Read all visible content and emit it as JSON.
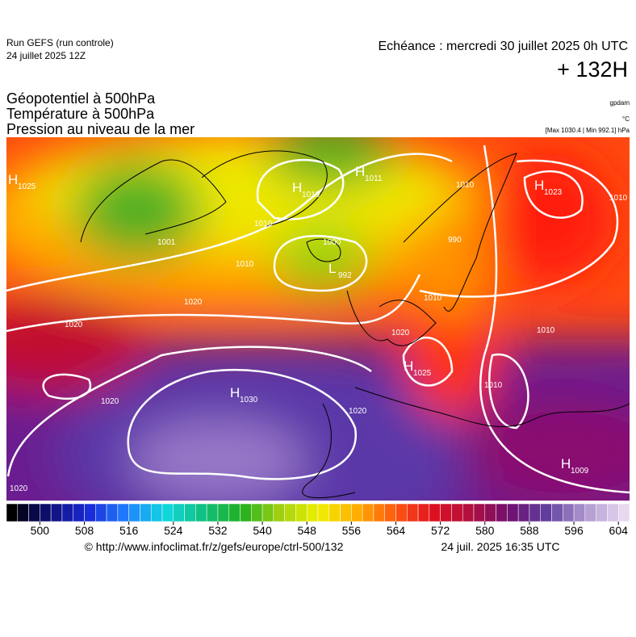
{
  "header": {
    "run": "Run GEFS (run controle)",
    "run_date": "24 juillet 2025 12Z",
    "valid": "Echéance : mercredi 30 juillet 2025 0h UTC",
    "lead": "+ 132H"
  },
  "titles": [
    "Géopotentiel à 500hPa",
    "Température à 500hPa",
    "Pression au niveau de la mer"
  ],
  "units": {
    "geopotential": "gpdam",
    "temperature": "°C",
    "pressure": "[Max 1030.4 | Min 992.1] hPa"
  },
  "centers": [
    {
      "letter": "H",
      "value": "1025"
    },
    {
      "letter": "H",
      "value": "1019"
    },
    {
      "letter": "H",
      "value": "1011"
    },
    {
      "letter": "H",
      "value": "1023"
    },
    {
      "letter": "L",
      "value": "992"
    },
    {
      "letter": "H",
      "value": "1030"
    },
    {
      "letter": "H",
      "value": "1025"
    },
    {
      "letter": "H",
      "value": "1009"
    }
  ],
  "isobar_labels": [
    "1001",
    "1010",
    "1020",
    "1020",
    "1000",
    "1010",
    "1010",
    "1010",
    "1020",
    "1020",
    "1010",
    "1020",
    "1020",
    "1010",
    "990",
    "1010"
  ],
  "colorbar": {
    "vlim": [
      494,
      606
    ],
    "ticks": [
      500,
      508,
      516,
      524,
      532,
      540,
      548,
      556,
      564,
      572,
      580,
      588,
      596,
      604
    ],
    "stops": [
      "#000000",
      "#10107a",
      "#1a2ad8",
      "#2080ff",
      "#10d8e0",
      "#10c080",
      "#20b020",
      "#a0d010",
      "#f0f000",
      "#ffb000",
      "#ff5a10",
      "#e01020",
      "#b01040",
      "#701070",
      "#6040a0",
      "#b098d0",
      "#e8d8f0"
    ]
  },
  "footer": {
    "source": "© http://www.infoclimat.fr/z/gefs/europe/ctrl-500/132",
    "generated": "24 juil. 2025 16:35 UTC"
  }
}
